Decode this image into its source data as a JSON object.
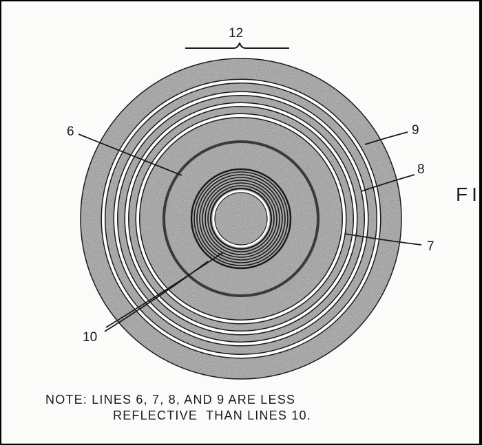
{
  "labels": {
    "l12": "12",
    "l6": "6",
    "l9": "9",
    "l8": "8",
    "l7": "7",
    "l10": "10",
    "fig": "FI"
  },
  "note": {
    "line1": "NOTE: LINES 6, 7, 8, AND 9 ARE LESS",
    "line2": "REFLECTIVE  THAN LINES 10."
  },
  "colors": {
    "ink": "#1a1a1a",
    "stipple": "#8c8c8c",
    "paper": "#fbfbfa"
  }
}
